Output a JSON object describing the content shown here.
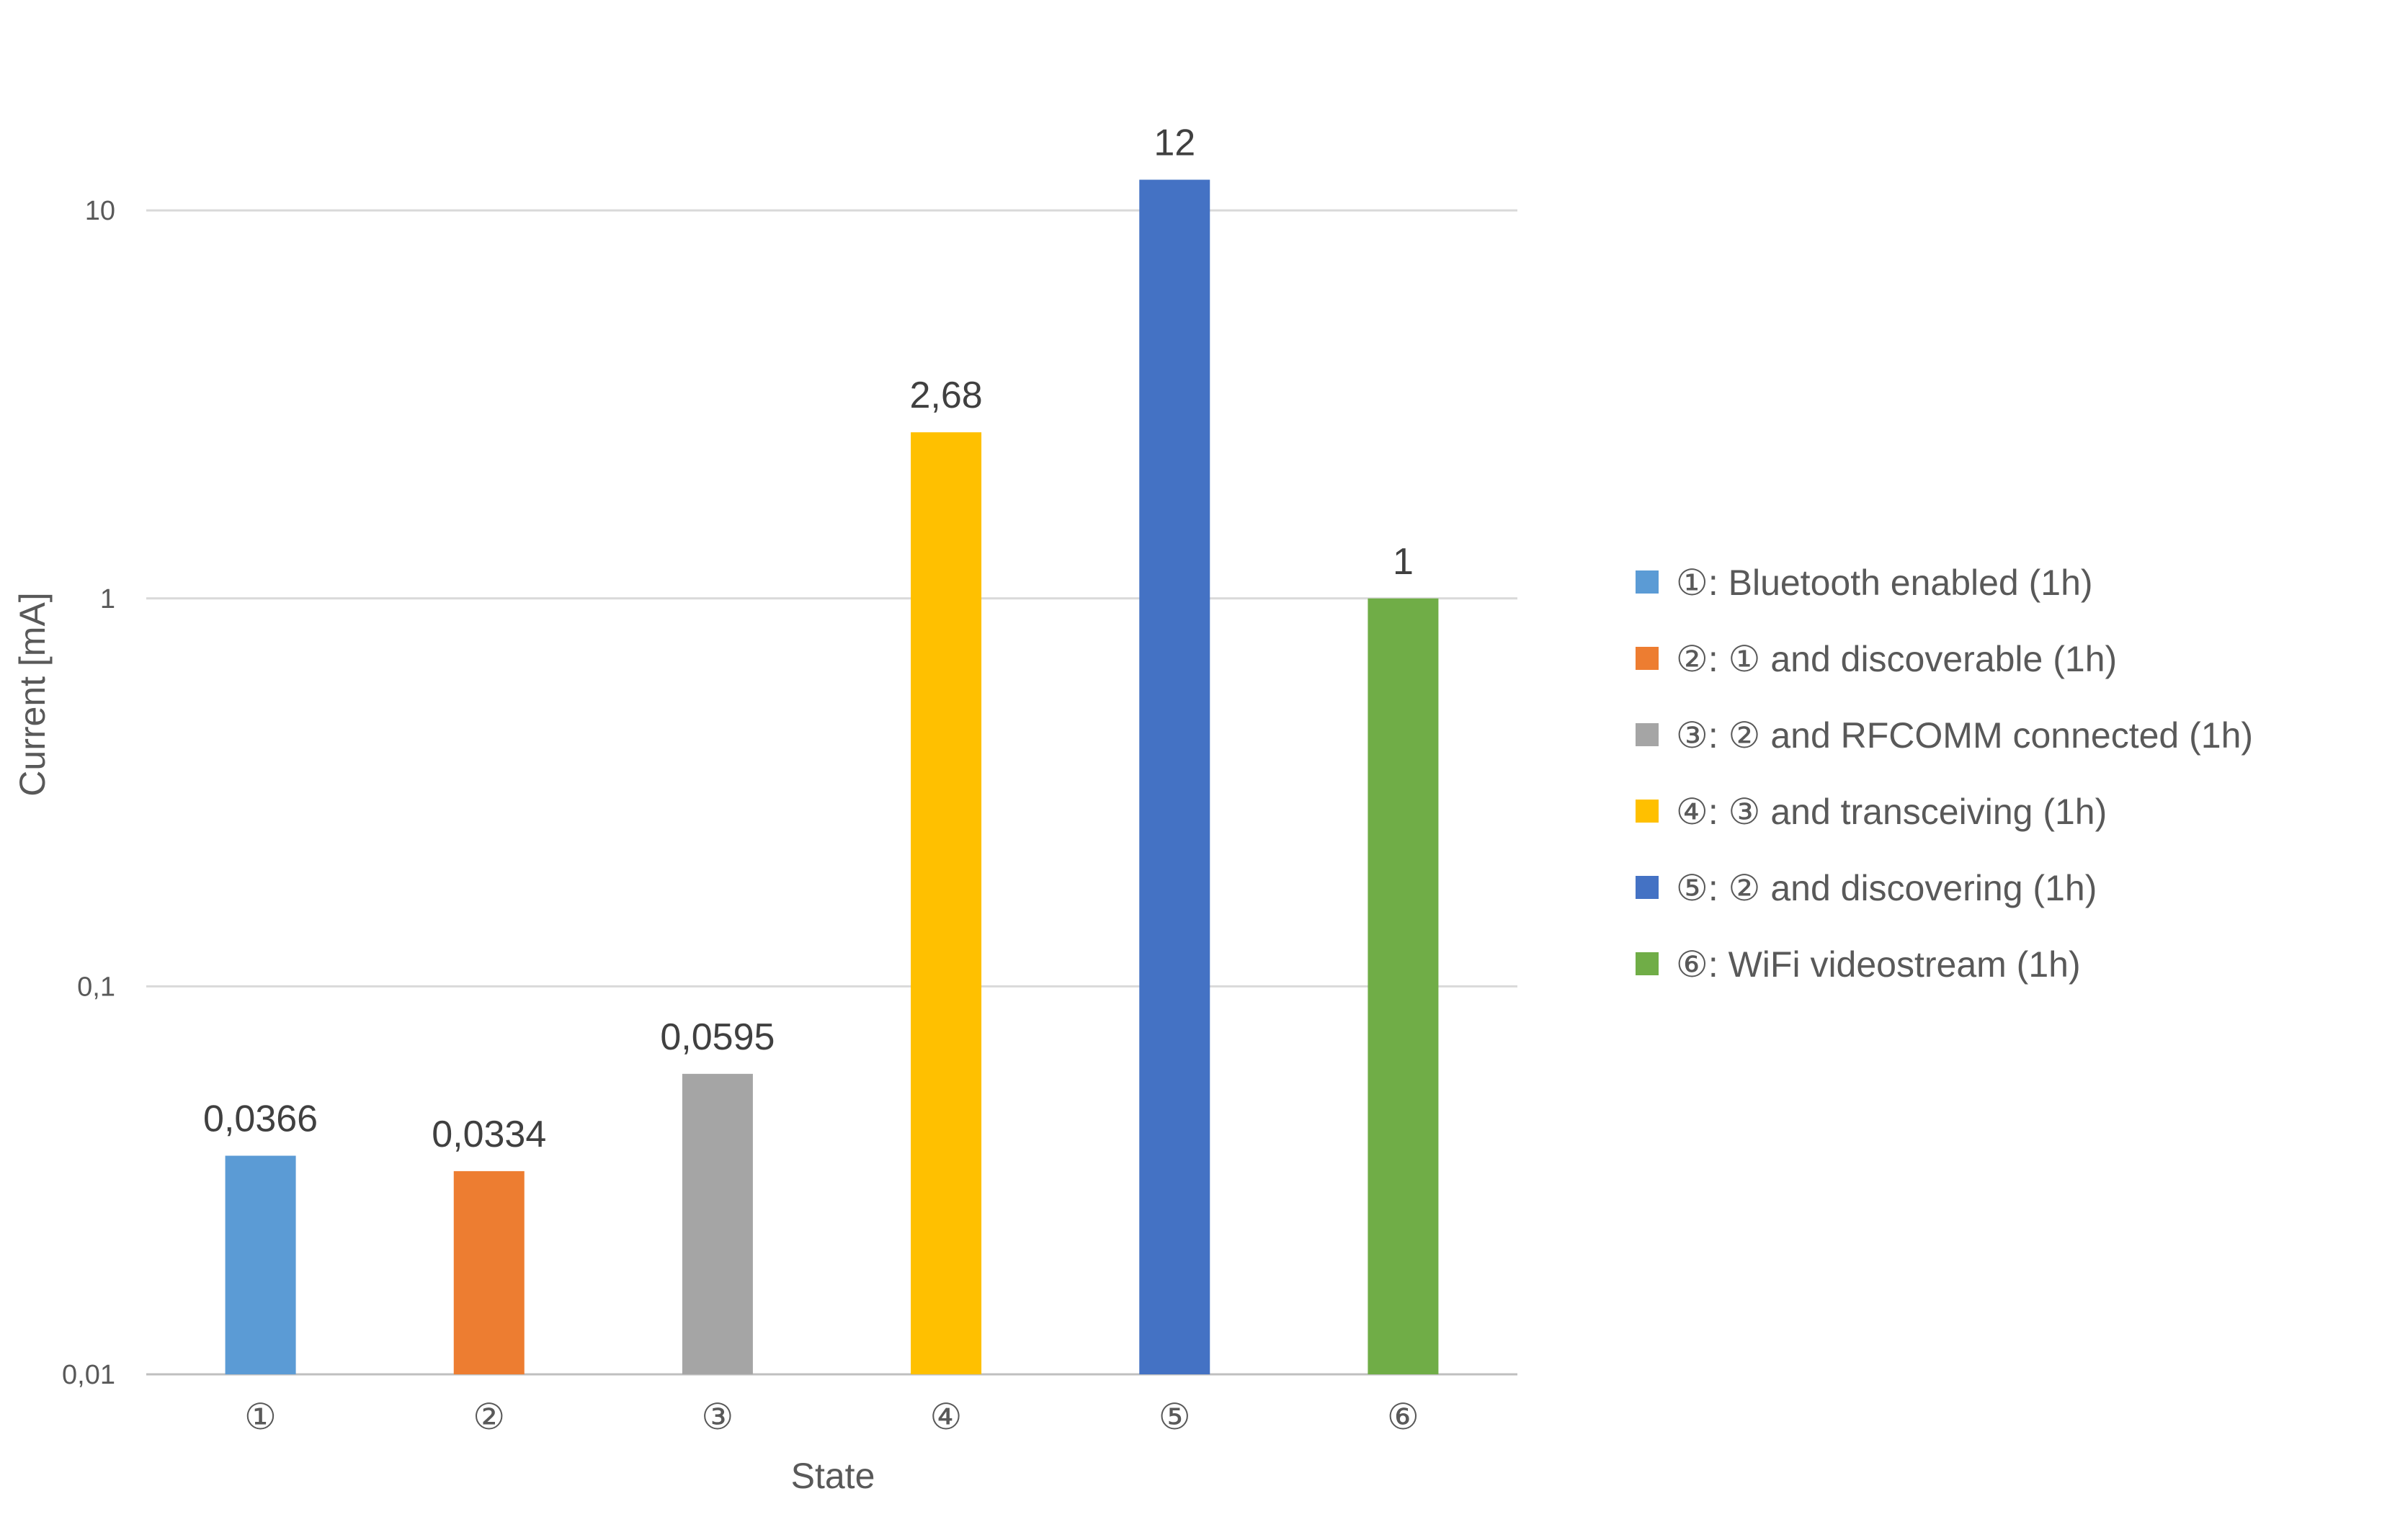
{
  "chart_data": {
    "type": "bar",
    "title": "",
    "xlabel": "State",
    "ylabel": "Current [mA]",
    "yscale": "log",
    "ylim": [
      0.01,
      20
    ],
    "grid": true,
    "legend_position": "right",
    "y_ticks": [
      {
        "value": 0.01,
        "label": "0,01"
      },
      {
        "value": 0.1,
        "label": "0,1"
      },
      {
        "value": 1,
        "label": "1"
      },
      {
        "value": 10,
        "label": "10"
      }
    ],
    "categories": [
      "①",
      "②",
      "③",
      "④",
      "⑤",
      "⑥"
    ],
    "values": [
      0.0366,
      0.0334,
      0.0595,
      2.68,
      12,
      1
    ],
    "data_labels": [
      "0,0366",
      "0,0334",
      "0,0595",
      "2,68",
      "12",
      "1"
    ],
    "colors": [
      "#5b9bd5",
      "#ed7d31",
      "#a5a5a5",
      "#ffc000",
      "#4472c4",
      "#70ad47"
    ],
    "legend": [
      "①: Bluetooth enabled (1h)",
      "②: ① and discoverable (1h)",
      "③: ② and RFCOMM connected (1h)",
      "④: ③ and transceiving (1h)",
      "⑤: ② and discovering (1h)",
      "⑥: WiFi videostream (1h)"
    ]
  }
}
